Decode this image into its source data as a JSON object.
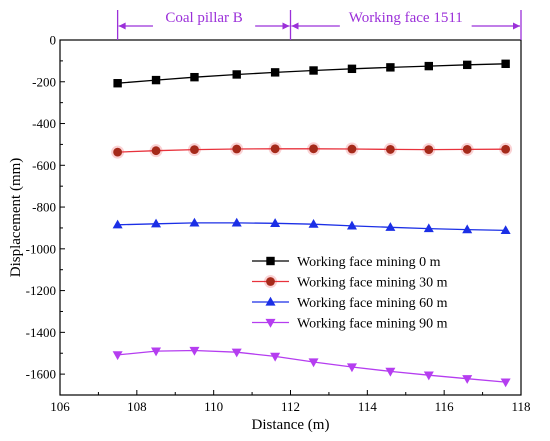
{
  "chart_data": {
    "type": "line",
    "xlabel": "Distance (m)",
    "ylabel": "Displacement (mm)",
    "xlim": [
      106,
      118
    ],
    "ylim": [
      -1700,
      0
    ],
    "xticks": [
      106,
      108,
      110,
      112,
      114,
      116,
      118
    ],
    "yticks": [
      0,
      -200,
      -400,
      -600,
      -800,
      -1000,
      -1200,
      -1400,
      -1600
    ],
    "grid": false,
    "legend_position": "lower-right",
    "accent_color": "#9b30d9",
    "regions": [
      {
        "label": "Coal pillar B",
        "x_start": 107.5,
        "x_end": 112
      },
      {
        "label": "Working face 1511",
        "x_start": 112,
        "x_end": 118
      }
    ],
    "x": [
      107.5,
      108.5,
      109.5,
      110.6,
      111.6,
      112.6,
      113.6,
      114.6,
      115.6,
      116.6,
      117.6
    ],
    "series": [
      {
        "name": "Working face mining 0 m",
        "color": "#000000",
        "marker": "square",
        "values": [
          -207,
          -192,
          -178,
          -165,
          -155,
          -146,
          -138,
          -131,
          -125,
          -119,
          -114
        ]
      },
      {
        "name": "Working face mining 30 m",
        "color": "#e8323c",
        "marker": "circle",
        "values": [
          -537,
          -530,
          -525,
          -522,
          -521,
          -521,
          -522,
          -524,
          -525,
          -524,
          -523
        ]
      },
      {
        "name": "Working face mining 60 m",
        "color": "#1b2fe6",
        "marker": "triangle-up",
        "values": [
          -885,
          -880,
          -876,
          -876,
          -878,
          -882,
          -890,
          -897,
          -903,
          -908,
          -912
        ]
      },
      {
        "name": "Working face mining 90 m",
        "color": "#b53df0",
        "marker": "triangle-down",
        "values": [
          -1508,
          -1490,
          -1487,
          -1495,
          -1515,
          -1542,
          -1566,
          -1587,
          -1605,
          -1622,
          -1638
        ]
      }
    ]
  }
}
